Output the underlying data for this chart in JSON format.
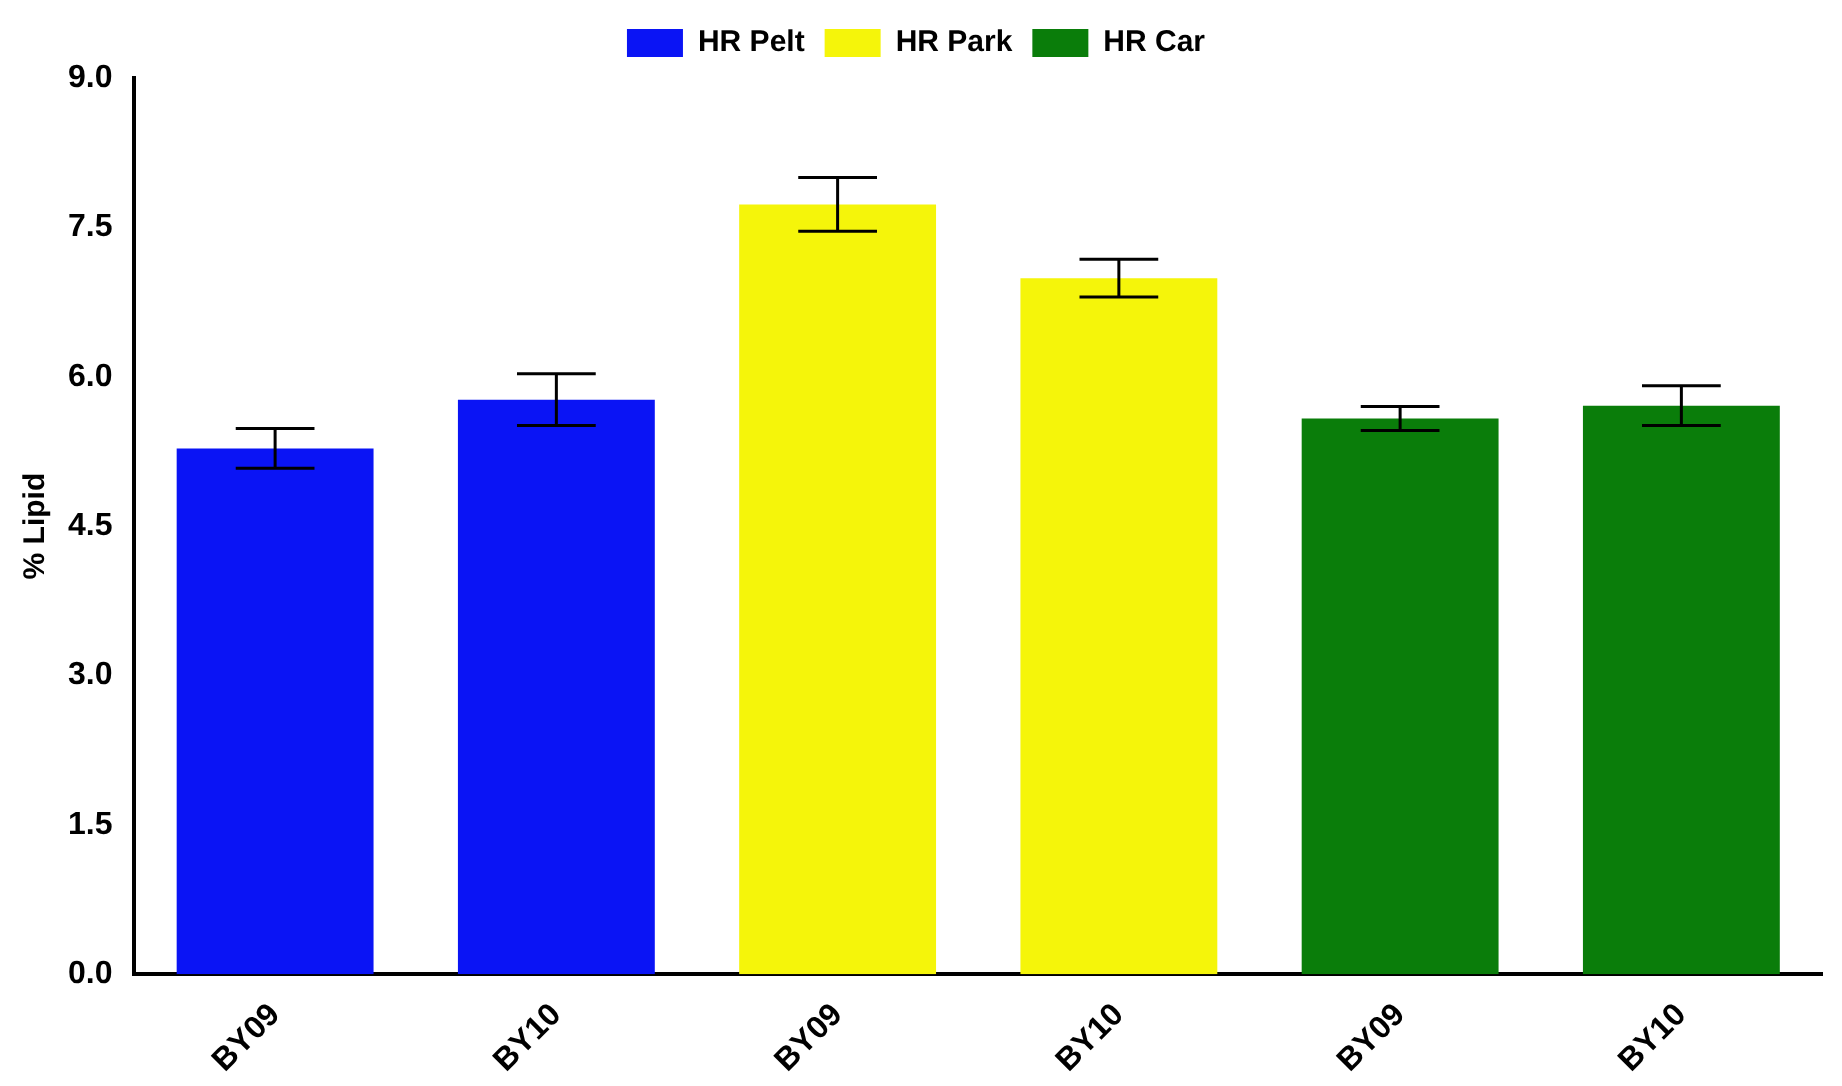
{
  "chart_data": {
    "type": "bar",
    "ylabel": "% Lipid",
    "categories": [
      "BY09",
      "BY10",
      "BY09",
      "BY10",
      "BY09",
      "BY10"
    ],
    "series": [
      {
        "name": "HR Pelt",
        "color": "#0a14f5",
        "values": [
          5.28,
          5.77,
          null,
          null,
          null,
          null
        ],
        "errors": [
          0.2,
          0.26,
          null,
          null,
          null,
          null
        ]
      },
      {
        "name": "HR Park",
        "color": "#f5f50a",
        "values": [
          null,
          null,
          7.73,
          6.99,
          null,
          null
        ],
        "errors": [
          null,
          null,
          0.27,
          0.19,
          null,
          null
        ]
      },
      {
        "name": "HR Car",
        "color": "#0a7d0a",
        "values": [
          null,
          null,
          null,
          null,
          5.58,
          5.71
        ],
        "errors": [
          null,
          null,
          null,
          null,
          0.12,
          0.2
        ]
      }
    ],
    "ylim": [
      0,
      9
    ],
    "yticks": [
      {
        "value": 0,
        "label": "0.0"
      },
      {
        "value": 1.5,
        "label": "1.5"
      },
      {
        "value": 3,
        "label": "3.0"
      },
      {
        "value": 4.5,
        "label": "4.5"
      },
      {
        "value": 6,
        "label": "6.0"
      },
      {
        "value": 7.5,
        "label": "7.5"
      },
      {
        "value": 9,
        "label": "9.0"
      }
    ],
    "grid": false,
    "legend": "top"
  }
}
